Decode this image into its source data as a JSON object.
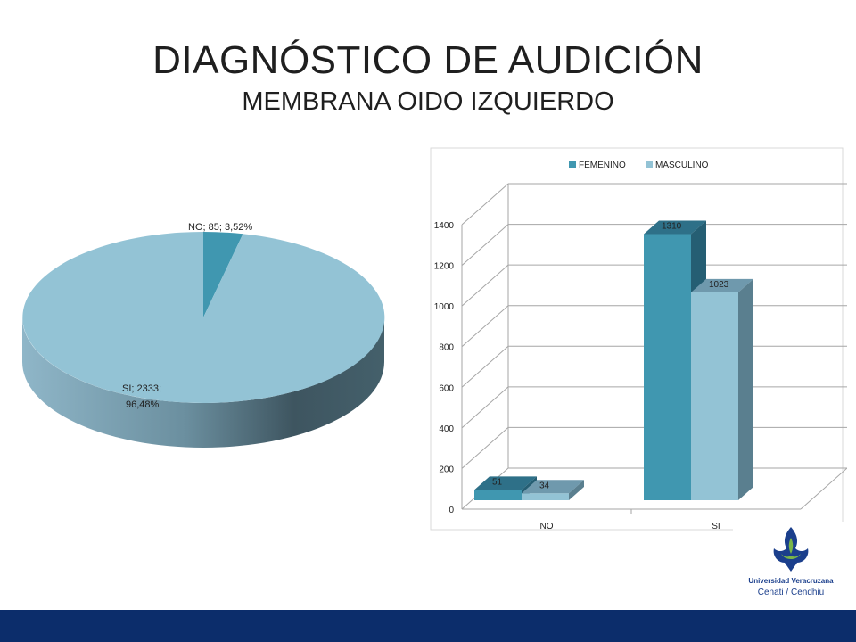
{
  "slide": {
    "title": "DIAGNÓSTICO DE AUDICIÓN",
    "subtitle": "MEMBRANA OIDO IZQUIERDO"
  },
  "logo": {
    "name": "Universidad Veracruzana",
    "unit": "Cenati / Cendhiu"
  },
  "colors": {
    "femenino": "#4097b0",
    "masculino": "#93c3d5",
    "footer": "#0c2d6b"
  },
  "chart_data": [
    {
      "type": "pie",
      "style": "3d",
      "slices": [
        {
          "label": "NO",
          "value": 85,
          "percent": "3,52%",
          "text": "NO; 85; 3,52%"
        },
        {
          "label": "SI",
          "value": 2333,
          "percent": "96,48%",
          "text_line1": "SI; 2333;",
          "text_line2": "96,48%"
        }
      ]
    },
    {
      "type": "bar",
      "style": "3d",
      "categories": [
        "NO",
        "SI"
      ],
      "series": [
        {
          "name": "FEMENINO",
          "values": [
            51,
            1310
          ]
        },
        {
          "name": "MASCULINO",
          "values": [
            34,
            1023
          ]
        }
      ],
      "ylim": [
        0,
        1400
      ],
      "yticks": [
        "0",
        "200",
        "400",
        "600",
        "800",
        "1000",
        "1200",
        "1400"
      ],
      "grid": true,
      "legend": "top"
    }
  ]
}
